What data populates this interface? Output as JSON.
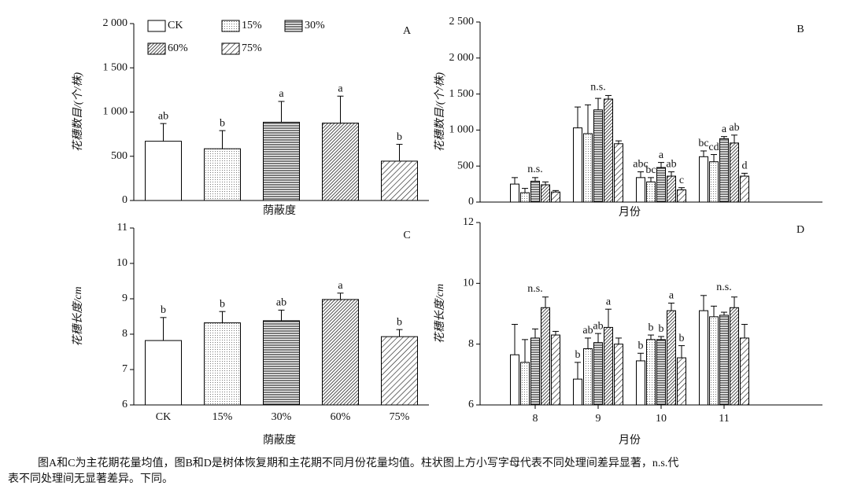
{
  "chart_data": [
    {
      "type": "bar",
      "panel": "A",
      "ylabel": "花穗数目/(个/株)",
      "xlabel": "荫蔽度",
      "categories": [
        "CK",
        "15%",
        "30%",
        "60%",
        "75%"
      ],
      "show_xticklabels": false,
      "legend": true,
      "patterns": [
        "none",
        "dots",
        "hlines",
        "dense-diagonal",
        "diagonal"
      ],
      "values": [
        670,
        585,
        885,
        875,
        445
      ],
      "errors": [
        200,
        205,
        235,
        305,
        190
      ],
      "labels": [
        "ab",
        "b",
        "a",
        "a",
        "b"
      ],
      "ylim": [
        0,
        2000
      ],
      "yticks": [
        0,
        500,
        {
          "value": 1000,
          "label": "1 000"
        },
        {
          "value": 1500,
          "label": "1 500"
        },
        {
          "value": 2000,
          "label": "2 000"
        }
      ]
    },
    {
      "type": "grouped-bar",
      "panel": "B",
      "ylabel": "花穗数目/(个/株)",
      "xlabel": "月份",
      "categories": [
        "8",
        "9",
        "10",
        "11"
      ],
      "show_xticklabels": false,
      "group_labels": [
        "n.s.",
        "n.s.",
        null,
        null
      ],
      "series": [
        {
          "pattern": "none",
          "values": [
            250,
            1030,
            340,
            630
          ],
          "errors": [
            90,
            290,
            80,
            80
          ],
          "labels": [
            null,
            null,
            "abc",
            "bc"
          ]
        },
        {
          "pattern": "dots",
          "values": [
            130,
            950,
            280,
            560
          ],
          "errors": [
            60,
            400,
            60,
            100
          ],
          "labels": [
            null,
            null,
            "bc",
            "cd"
          ]
        },
        {
          "pattern": "hlines",
          "values": [
            290,
            1280,
            480,
            880
          ],
          "errors": [
            50,
            160,
            70,
            30
          ],
          "labels": [
            null,
            null,
            "a",
            "a"
          ]
        },
        {
          "pattern": "dense-diagonal",
          "values": [
            240,
            1430,
            360,
            820
          ],
          "errors": [
            40,
            50,
            60,
            110
          ],
          "labels": [
            null,
            null,
            "ab",
            "ab"
          ]
        },
        {
          "pattern": "diagonal",
          "values": [
            140,
            810,
            170,
            360
          ],
          "errors": [
            20,
            40,
            30,
            40
          ],
          "labels": [
            null,
            null,
            "c",
            "d"
          ]
        }
      ],
      "ylim": [
        0,
        2500
      ],
      "yticks": [
        0,
        500,
        {
          "value": 1000,
          "label": "1 000"
        },
        {
          "value": 1500,
          "label": "1 500"
        },
        {
          "value": 2000,
          "label": "2 000"
        },
        {
          "value": 2500,
          "label": "2 500"
        }
      ]
    },
    {
      "type": "bar",
      "panel": "C",
      "ylabel": "花穗长度/cm",
      "xlabel": "荫蔽度",
      "categories": [
        "CK",
        "15%",
        "30%",
        "60%",
        "75%"
      ],
      "show_xticklabels": true,
      "patterns": [
        "none",
        "dots",
        "hlines",
        "dense-diagonal",
        "diagonal"
      ],
      "values": [
        7.82,
        8.32,
        8.38,
        8.98,
        7.93
      ],
      "errors": [
        0.65,
        0.32,
        0.3,
        0.18,
        0.2
      ],
      "labels": [
        "b",
        "b",
        "ab",
        "a",
        "b"
      ],
      "ylim": [
        6,
        11
      ],
      "yticks": [
        6,
        7,
        8,
        9,
        10,
        11
      ]
    },
    {
      "type": "grouped-bar",
      "panel": "D",
      "ylabel": "花穗长度/cm",
      "xlabel": "月份",
      "categories": [
        "8",
        "9",
        "10",
        "11"
      ],
      "show_xticklabels": true,
      "group_labels": [
        "n.s.",
        null,
        null,
        "n.s."
      ],
      "series": [
        {
          "pattern": "none",
          "values": [
            7.65,
            6.85,
            7.45,
            9.1
          ],
          "errors": [
            1.0,
            0.55,
            0.25,
            0.5
          ],
          "labels": [
            null,
            "b",
            "b",
            null
          ]
        },
        {
          "pattern": "dots",
          "values": [
            7.4,
            7.85,
            8.15,
            8.9
          ],
          "errors": [
            0.75,
            0.35,
            0.15,
            0.35
          ],
          "labels": [
            null,
            "ab",
            "b",
            null
          ]
        },
        {
          "pattern": "hlines",
          "values": [
            8.2,
            8.05,
            8.15,
            8.95
          ],
          "errors": [
            0.3,
            0.3,
            0.1,
            0.1
          ],
          "labels": [
            null,
            "ab",
            "b",
            null
          ]
        },
        {
          "pattern": "dense-diagonal",
          "values": [
            9.2,
            8.55,
            9.1,
            9.2
          ],
          "errors": [
            0.35,
            0.6,
            0.25,
            0.35
          ],
          "labels": [
            null,
            "a",
            "a",
            null
          ]
        },
        {
          "pattern": "diagonal",
          "values": [
            8.3,
            8.0,
            7.55,
            8.2
          ],
          "errors": [
            0.12,
            0.2,
            0.4,
            0.45
          ],
          "labels": [
            null,
            null,
            "b",
            null
          ]
        }
      ],
      "ylim": [
        6,
        12
      ],
      "yticks": [
        6,
        8,
        10,
        12
      ]
    }
  ],
  "caption": [
    "图A和C为主花期花量均值，图B和D是树体恢复期和主花期不同月份花量均值。柱状图上方小写字母代表不同处理间差异显著，n.s.代",
    "表不同处理间无显著差异。下同。"
  ]
}
